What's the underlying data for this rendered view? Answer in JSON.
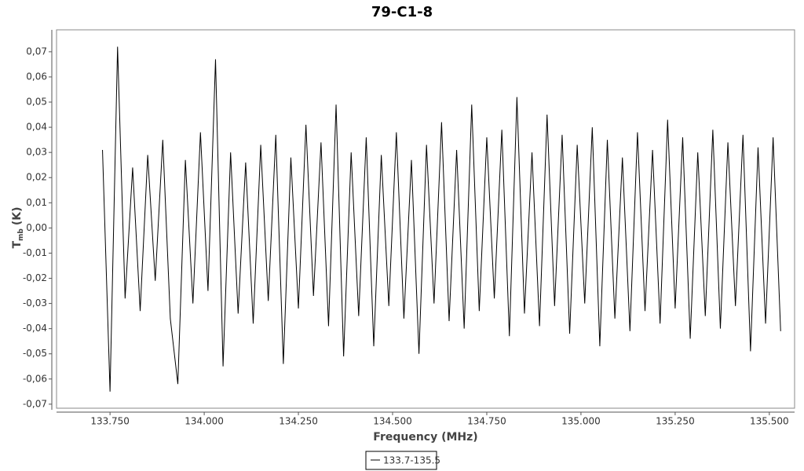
{
  "chart_data": {
    "type": "line",
    "title": "79-C1-8",
    "x_label": "Frequency (MHz)",
    "y_label": "T",
    "y_label_sub": "mb",
    "y_label_unit": "(K)",
    "x": [
      133.73,
      133.75,
      133.77,
      133.79,
      133.81,
      133.83,
      133.85,
      133.87,
      133.89,
      133.91,
      133.93,
      133.95,
      133.97,
      133.99,
      134.01,
      134.03,
      134.05,
      134.07,
      134.09,
      134.11,
      134.13,
      134.15,
      134.17,
      134.19,
      134.21,
      134.23,
      134.25,
      134.27,
      134.29,
      134.31,
      134.33,
      134.35,
      134.37,
      134.39,
      134.41,
      134.43,
      134.45,
      134.47,
      134.49,
      134.51,
      134.53,
      134.55,
      134.57,
      134.59,
      134.61,
      134.63,
      134.65,
      134.67,
      134.69,
      134.71,
      134.73,
      134.75,
      134.77,
      134.79,
      134.81,
      134.83,
      134.85,
      134.87,
      134.89,
      134.91,
      134.93,
      134.95,
      134.97,
      134.99,
      135.01,
      135.03,
      135.05,
      135.07,
      135.09,
      135.11,
      135.13,
      135.15,
      135.17,
      135.19,
      135.21,
      135.23,
      135.25,
      135.27,
      135.29,
      135.31,
      135.33,
      135.35,
      135.37,
      135.39,
      135.41,
      135.43,
      135.45,
      135.47,
      135.49,
      135.51,
      135.53
    ],
    "series": [
      {
        "name": "133.7-135.5",
        "color": "#000000",
        "values": [
          0.031,
          -0.065,
          0.072,
          -0.028,
          0.024,
          -0.033,
          0.029,
          -0.021,
          0.035,
          -0.036,
          -0.062,
          0.027,
          -0.03,
          0.038,
          -0.025,
          0.067,
          -0.055,
          0.03,
          -0.034,
          0.026,
          -0.038,
          0.033,
          -0.029,
          0.037,
          -0.054,
          0.028,
          -0.032,
          0.041,
          -0.027,
          0.034,
          -0.039,
          0.049,
          -0.051,
          0.03,
          -0.035,
          0.036,
          -0.047,
          0.029,
          -0.031,
          0.038,
          -0.036,
          0.027,
          -0.05,
          0.033,
          -0.03,
          0.042,
          -0.037,
          0.031,
          -0.04,
          0.049,
          -0.033,
          0.036,
          -0.028,
          0.039,
          -0.043,
          0.052,
          -0.034,
          0.03,
          -0.039,
          0.045,
          -0.031,
          0.037,
          -0.042,
          0.033,
          -0.03,
          0.04,
          -0.047,
          0.035,
          -0.036,
          0.028,
          -0.041,
          0.038,
          -0.033,
          0.031,
          -0.038,
          0.043,
          -0.032,
          0.036,
          -0.044,
          0.03,
          -0.035,
          0.039,
          -0.04,
          0.034,
          -0.031,
          0.037,
          -0.049,
          0.032,
          -0.038,
          0.036,
          -0.041
        ]
      }
    ],
    "xlim": [
      133.608,
      135.567
    ],
    "ylim": [
      -0.0716,
      0.0787
    ],
    "xticks": [
      {
        "value": 133.75,
        "label": "133.750"
      },
      {
        "value": 134,
        "label": "134.000"
      },
      {
        "value": 134.25,
        "label": "134.250"
      },
      {
        "value": 134.5,
        "label": "134.500"
      },
      {
        "value": 134.75,
        "label": "134.750"
      },
      {
        "value": 135,
        "label": "135.000"
      },
      {
        "value": 135.25,
        "label": "135.250"
      },
      {
        "value": 135.5,
        "label": "135.500"
      }
    ],
    "yticks": [
      {
        "value": -0.07,
        "label": "-0,07"
      },
      {
        "value": -0.06,
        "label": "-0,06"
      },
      {
        "value": -0.05,
        "label": "-0,05"
      },
      {
        "value": -0.04,
        "label": "-0,04"
      },
      {
        "value": -0.03,
        "label": "-0,03"
      },
      {
        "value": -0.02,
        "label": "-0,02"
      },
      {
        "value": -0.01,
        "label": "-0,01"
      },
      {
        "value": 0,
        "label": "0,00"
      },
      {
        "value": 0.01,
        "label": "0,01"
      },
      {
        "value": 0.02,
        "label": "0,02"
      },
      {
        "value": 0.03,
        "label": "0,03"
      },
      {
        "value": 0.04,
        "label": "0,04"
      },
      {
        "value": 0.05,
        "label": "0,05"
      },
      {
        "value": 0.06,
        "label": "0,06"
      },
      {
        "value": 0.07,
        "label": "0,07"
      }
    ],
    "grid": false,
    "legend": "bottom"
  }
}
